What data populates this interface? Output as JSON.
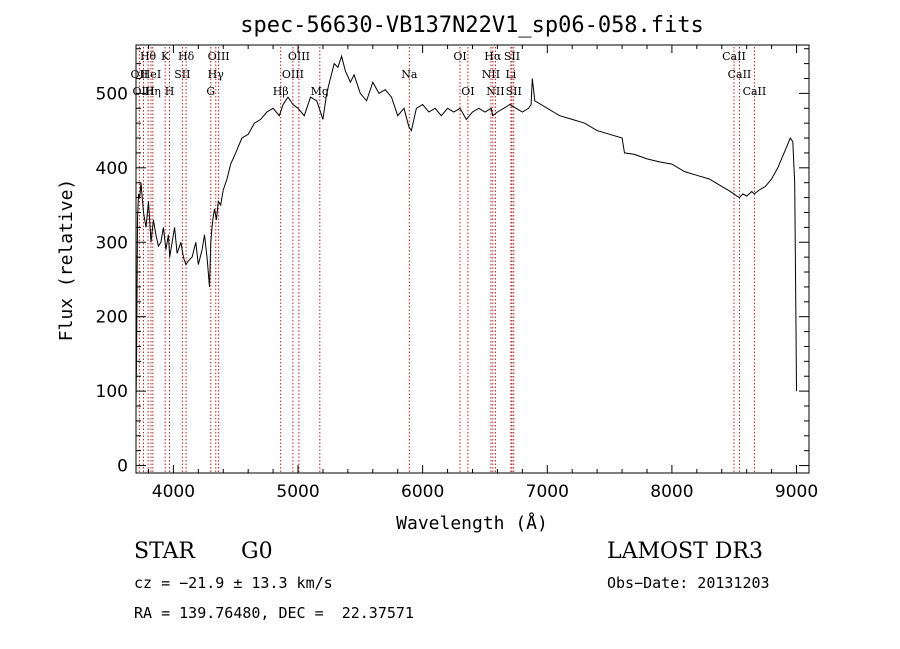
{
  "chart_data": {
    "type": "line",
    "title": "spec-56630-VB137N22V1_sp06-058.fits",
    "xlabel": "Wavelength (Å)",
    "ylabel": "Flux (relative)",
    "xlim": [
      3700,
      9100
    ],
    "ylim": [
      -10,
      565
    ],
    "x_ticks": [
      4000,
      5000,
      6000,
      7000,
      8000,
      9000
    ],
    "x_tick_labels": [
      "4000",
      "5000",
      "6000",
      "7000",
      "8000",
      "9000"
    ],
    "y_ticks": [
      0,
      100,
      200,
      300,
      400,
      500
    ],
    "y_tick_labels": [
      "0",
      "100",
      "200",
      "300",
      "400",
      "500"
    ],
    "series": [
      {
        "name": "flux",
        "x": [
          3700,
          3705,
          3712,
          3720,
          3730,
          3740,
          3760,
          3780,
          3800,
          3820,
          3840,
          3860,
          3880,
          3900,
          3920,
          3940,
          3960,
          3970,
          3990,
          4010,
          4030,
          4060,
          4080,
          4100,
          4120,
          4150,
          4180,
          4200,
          4230,
          4250,
          4270,
          4290,
          4300,
          4310,
          4320,
          4330,
          4345,
          4360,
          4380,
          4400,
          4430,
          4460,
          4500,
          4550,
          4600,
          4650,
          4700,
          4750,
          4800,
          4850,
          4880,
          4920,
          4960,
          5000,
          5050,
          5100,
          5150,
          5180,
          5200,
          5230,
          5260,
          5290,
          5320,
          5350,
          5380,
          5420,
          5450,
          5500,
          5550,
          5600,
          5650,
          5700,
          5750,
          5800,
          5850,
          5890,
          5910,
          5950,
          6000,
          6050,
          6100,
          6150,
          6200,
          6250,
          6300,
          6350,
          6400,
          6450,
          6500,
          6550,
          6562,
          6600,
          6650,
          6700,
          6750,
          6800,
          6850,
          6870,
          6880,
          6900,
          6950,
          7000,
          7050,
          7100,
          7200,
          7300,
          7400,
          7500,
          7600,
          7620,
          7700,
          7800,
          7900,
          8000,
          8100,
          8200,
          8300,
          8400,
          8450,
          8498,
          8520,
          8542,
          8570,
          8600,
          8640,
          8662,
          8700,
          8750,
          8800,
          8850,
          8900,
          8950,
          8970,
          8985,
          8995,
          9000
        ],
        "values": [
          80,
          150,
          330,
          365,
          360,
          380,
          340,
          320,
          355,
          300,
          330,
          310,
          295,
          300,
          320,
          290,
          310,
          280,
          300,
          320,
          285,
          300,
          280,
          270,
          275,
          280,
          300,
          270,
          290,
          310,
          280,
          240,
          300,
          320,
          335,
          345,
          330,
          355,
          350,
          370,
          385,
          405,
          420,
          440,
          445,
          460,
          465,
          475,
          480,
          470,
          485,
          495,
          485,
          480,
          470,
          495,
          490,
          475,
          465,
          500,
          520,
          540,
          535,
          550,
          530,
          515,
          525,
          500,
          490,
          515,
          500,
          505,
          495,
          470,
          480,
          455,
          450,
          480,
          485,
          475,
          480,
          470,
          480,
          475,
          480,
          465,
          475,
          480,
          475,
          480,
          470,
          475,
          480,
          485,
          480,
          475,
          480,
          485,
          520,
          490,
          485,
          480,
          475,
          470,
          465,
          460,
          450,
          445,
          440,
          420,
          418,
          412,
          408,
          405,
          395,
          390,
          385,
          375,
          370,
          365,
          362,
          360,
          365,
          362,
          368,
          365,
          370,
          375,
          385,
          400,
          420,
          440,
          435,
          380,
          200,
          100
        ]
      }
    ],
    "lines": [
      {
        "label": "Hθ",
        "wl": 3797,
        "row": 0
      },
      {
        "label": "K",
        "wl": 3934,
        "row": 0
      },
      {
        "label": "Hδ",
        "wl": 4102,
        "row": 0
      },
      {
        "label": "OIII",
        "wl": 4363,
        "row": 0
      },
      {
        "label": "OIII",
        "wl": 5007,
        "row": 0
      },
      {
        "label": "OI",
        "wl": 6300,
        "row": 0
      },
      {
        "label": "Hα",
        "wl": 6563,
        "row": 0
      },
      {
        "label": "SII",
        "wl": 6717,
        "row": 0
      },
      {
        "label": "CaII",
        "wl": 8498,
        "row": 0
      },
      {
        "label": "OII",
        "wl": 3727,
        "row": 1
      },
      {
        "label": "HeI",
        "wl": 3820,
        "row": 1
      },
      {
        "label": "SII",
        "wl": 4072,
        "row": 1
      },
      {
        "label": "Hγ",
        "wl": 4340,
        "row": 1
      },
      {
        "label": "OIII",
        "wl": 4959,
        "row": 1
      },
      {
        "label": "Na",
        "wl": 5893,
        "row": 1
      },
      {
        "label": "NII",
        "wl": 6548,
        "row": 1
      },
      {
        "label": "Li",
        "wl": 6708,
        "row": 1
      },
      {
        "label": "CaII",
        "wl": 8542,
        "row": 1
      },
      {
        "label": "OIII",
        "wl": 3760,
        "row": 2
      },
      {
        "label": "Hη",
        "wl": 3835,
        "row": 2
      },
      {
        "label": "H",
        "wl": 3969,
        "row": 2
      },
      {
        "label": "G",
        "wl": 4300,
        "row": 2
      },
      {
        "label": "Hβ",
        "wl": 4861,
        "row": 2
      },
      {
        "label": "Mg",
        "wl": 5175,
        "row": 2
      },
      {
        "label": "OI",
        "wl": 6363,
        "row": 2
      },
      {
        "label": "NII",
        "wl": 6584,
        "row": 2
      },
      {
        "label": "SII",
        "wl": 6731,
        "row": 2
      },
      {
        "label": "CaII",
        "wl": 8662,
        "row": 2
      }
    ]
  },
  "info": {
    "object_class": "STAR",
    "subclass": "G0",
    "survey": "LAMOST DR3",
    "redshift": "cz = −21.9 ± 13.3 km/s",
    "obs_date": "Obs−Date: 20131203",
    "coords": "RA = 139.76480, DEC =  22.37571"
  },
  "colors": {
    "line_marker": "#b22222",
    "spectrum": "#000000",
    "axes": "#000000"
  }
}
